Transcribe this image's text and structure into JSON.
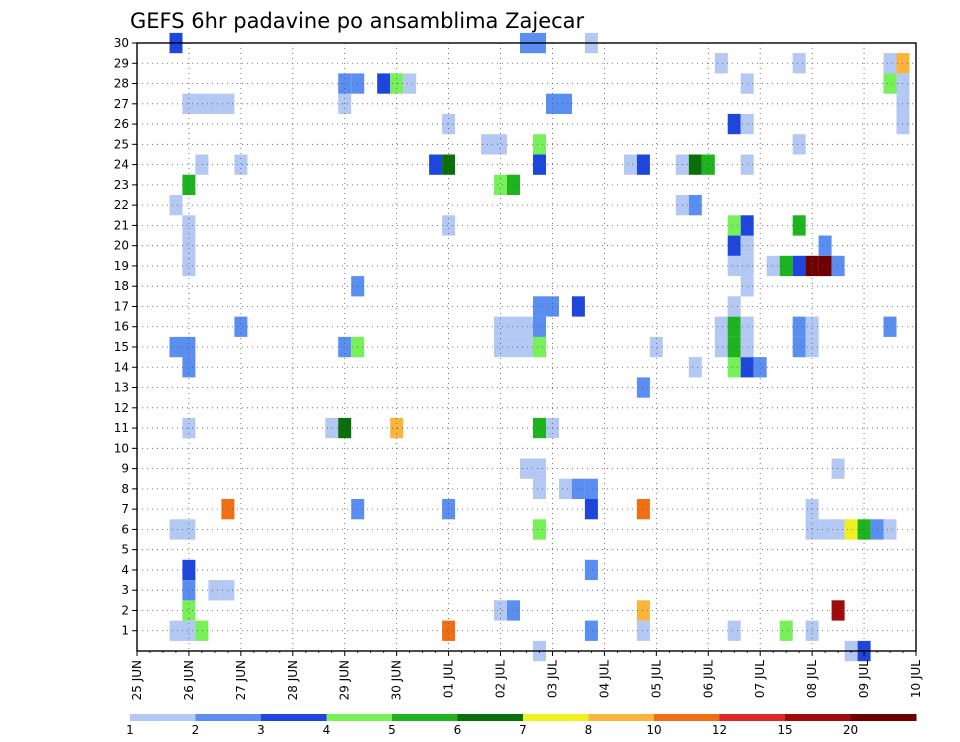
{
  "chart_data": {
    "type": "heatmap",
    "title": "GEFS 6hr padavine po ansamblima Zajecar",
    "xlabel": "",
    "ylabel": "",
    "x_tick_labels": [
      "25 JUN",
      "26 JUN",
      "27 JUN",
      "28 JUN",
      "29 JUN",
      "30 JUN",
      "01 JUL",
      "02 JUL",
      "03 JUL",
      "04 JUL",
      "05 JUL",
      "06 JUL",
      "07 JUL",
      "08 JUL",
      "09 JUL",
      "10 JUL"
    ],
    "y_tick_labels": [
      "1",
      "2",
      "3",
      "4",
      "5",
      "6",
      "7",
      "8",
      "9",
      "10",
      "11",
      "12",
      "13",
      "14",
      "15",
      "16",
      "17",
      "18",
      "19",
      "20",
      "21",
      "22",
      "23",
      "24",
      "25",
      "26",
      "27",
      "28",
      "29",
      "30"
    ],
    "x_range_days": [
      0,
      15
    ],
    "y_range_members": [
      0,
      30
    ],
    "grid": true,
    "colorbar": {
      "levels": [
        "1",
        "2",
        "3",
        "4",
        "5",
        "6",
        "7",
        "8",
        "10",
        "12",
        "15",
        "20"
      ],
      "colors": [
        "#b4c8f4",
        "#5a8ef0",
        "#1e46dc",
        "#78f05a",
        "#1eb41e",
        "#0a6e0a",
        "#f0f01e",
        "#fab43c",
        "#f06e14",
        "#dc2828",
        "#a00a0a",
        "#6e0000"
      ]
    },
    "cells": [
      {
        "day": 0.75,
        "member": 30,
        "level": 2
      },
      {
        "day": 1.0,
        "member": 1,
        "level": 0
      },
      {
        "day": 1.0,
        "member": 2,
        "level": 3
      },
      {
        "day": 1.0,
        "member": 3,
        "level": 1
      },
      {
        "day": 1.0,
        "member": 4,
        "level": 2
      },
      {
        "day": 1.0,
        "member": 6,
        "level": 0
      },
      {
        "day": 1.0,
        "member": 11,
        "level": 0
      },
      {
        "day": 1.0,
        "member": 14,
        "level": 1
      },
      {
        "day": 1.0,
        "member": 15,
        "level": 1
      },
      {
        "day": 1.0,
        "member": 19,
        "level": 0
      },
      {
        "day": 1.0,
        "member": 20,
        "level": 0
      },
      {
        "day": 1.0,
        "member": 21,
        "level": 0
      },
      {
        "day": 1.0,
        "member": 23,
        "level": 4
      },
      {
        "day": 1.0,
        "member": 27,
        "level": 0
      },
      {
        "day": 0.75,
        "member": 1,
        "level": 0
      },
      {
        "day": 0.75,
        "member": 6,
        "level": 0
      },
      {
        "day": 0.75,
        "member": 15,
        "level": 1
      },
      {
        "day": 0.75,
        "member": 22,
        "level": 0
      },
      {
        "day": 1.25,
        "member": 1,
        "level": 3
      },
      {
        "day": 1.25,
        "member": 24,
        "level": 0
      },
      {
        "day": 1.25,
        "member": 27,
        "level": 0
      },
      {
        "day": 1.5,
        "member": 3,
        "level": 0
      },
      {
        "day": 1.75,
        "member": 3,
        "level": 0
      },
      {
        "day": 1.75,
        "member": 27,
        "level": 0
      },
      {
        "day": 1.5,
        "member": 27,
        "level": 0
      },
      {
        "day": 1.75,
        "member": 7,
        "level": 8
      },
      {
        "day": 2.0,
        "member": 16,
        "level": 1
      },
      {
        "day": 2.0,
        "member": 24,
        "level": 0
      },
      {
        "day": 3.75,
        "member": 11,
        "level": 0
      },
      {
        "day": 4.0,
        "member": 11,
        "level": 5
      },
      {
        "day": 4.0,
        "member": 15,
        "level": 1
      },
      {
        "day": 4.0,
        "member": 27,
        "level": 0
      },
      {
        "day": 4.0,
        "member": 28,
        "level": 1
      },
      {
        "day": 4.25,
        "member": 28,
        "level": 1
      },
      {
        "day": 4.25,
        "member": 7,
        "level": 1
      },
      {
        "day": 4.25,
        "member": 15,
        "level": 3
      },
      {
        "day": 4.25,
        "member": 18,
        "level": 1
      },
      {
        "day": 4.75,
        "member": 28,
        "level": 2
      },
      {
        "day": 5.0,
        "member": 28,
        "level": 3
      },
      {
        "day": 5.25,
        "member": 28,
        "level": 0
      },
      {
        "day": 5.0,
        "member": 11,
        "level": 7
      },
      {
        "day": 5.75,
        "member": 24,
        "level": 2
      },
      {
        "day": 6.0,
        "member": 24,
        "level": 5
      },
      {
        "day": 6.0,
        "member": 1,
        "level": 8
      },
      {
        "day": 6.0,
        "member": 7,
        "level": 1
      },
      {
        "day": 6.0,
        "member": 21,
        "level": 0
      },
      {
        "day": 6.0,
        "member": 26,
        "level": 0
      },
      {
        "day": 6.75,
        "member": 25,
        "level": 0
      },
      {
        "day": 7.0,
        "member": 25,
        "level": 0
      },
      {
        "day": 7.0,
        "member": 23,
        "level": 3
      },
      {
        "day": 7.25,
        "member": 23,
        "level": 4
      },
      {
        "day": 7.0,
        "member": 2,
        "level": 0
      },
      {
        "day": 7.25,
        "member": 2,
        "level": 1
      },
      {
        "day": 7.0,
        "member": 16,
        "level": 0
      },
      {
        "day": 7.25,
        "member": 16,
        "level": 0
      },
      {
        "day": 7.5,
        "member": 16,
        "level": 0
      },
      {
        "day": 7.0,
        "member": 15,
        "level": 0
      },
      {
        "day": 7.25,
        "member": 15,
        "level": 0
      },
      {
        "day": 7.5,
        "member": 15,
        "level": 0
      },
      {
        "day": 7.75,
        "member": 15,
        "level": 3
      },
      {
        "day": 7.75,
        "member": 16,
        "level": 1
      },
      {
        "day": 7.75,
        "member": 17,
        "level": 1
      },
      {
        "day": 8.0,
        "member": 17,
        "level": 1
      },
      {
        "day": 7.5,
        "member": 30,
        "level": 1
      },
      {
        "day": 7.75,
        "member": 30,
        "level": 1
      },
      {
        "day": 7.75,
        "member": 24,
        "level": 2
      },
      {
        "day": 7.75,
        "member": 25,
        "level": 3
      },
      {
        "day": 7.75,
        "member": 11,
        "level": 4
      },
      {
        "day": 7.75,
        "member": 6,
        "level": 3
      },
      {
        "day": 8.0,
        "member": 11,
        "level": 0
      },
      {
        "day": 7.5,
        "member": 9,
        "level": 0
      },
      {
        "day": 7.75,
        "member": 9,
        "level": 0
      },
      {
        "day": 7.75,
        "member": 8,
        "level": 0
      },
      {
        "day": 7.75,
        "member": 0,
        "level": 0
      },
      {
        "day": 8.0,
        "member": 27,
        "level": 1
      },
      {
        "day": 8.25,
        "member": 27,
        "level": 1
      },
      {
        "day": 8.5,
        "member": 17,
        "level": 2
      },
      {
        "day": 8.25,
        "member": 8,
        "level": 0
      },
      {
        "day": 8.5,
        "member": 8,
        "level": 1
      },
      {
        "day": 8.75,
        "member": 8,
        "level": 1
      },
      {
        "day": 8.75,
        "member": 7,
        "level": 2
      },
      {
        "day": 8.75,
        "member": 1,
        "level": 1
      },
      {
        "day": 8.75,
        "member": 4,
        "level": 1
      },
      {
        "day": 8.75,
        "member": 30,
        "level": 0
      },
      {
        "day": 9.5,
        "member": 24,
        "level": 0
      },
      {
        "day": 9.75,
        "member": 24,
        "level": 2
      },
      {
        "day": 9.75,
        "member": 1,
        "level": 0
      },
      {
        "day": 9.75,
        "member": 7,
        "level": 8
      },
      {
        "day": 9.75,
        "member": 2,
        "level": 7
      },
      {
        "day": 9.75,
        "member": 13,
        "level": 1
      },
      {
        "day": 10.0,
        "member": 15,
        "level": 0
      },
      {
        "day": 10.5,
        "member": 24,
        "level": 0
      },
      {
        "day": 10.75,
        "member": 24,
        "level": 5
      },
      {
        "day": 11.0,
        "member": 24,
        "level": 4
      },
      {
        "day": 10.5,
        "member": 22,
        "level": 0
      },
      {
        "day": 10.75,
        "member": 22,
        "level": 1
      },
      {
        "day": 10.75,
        "member": 14,
        "level": 0
      },
      {
        "day": 11.25,
        "member": 15,
        "level": 0
      },
      {
        "day": 11.25,
        "member": 16,
        "level": 0
      },
      {
        "day": 11.25,
        "member": 29,
        "level": 0
      },
      {
        "day": 11.5,
        "member": 14,
        "level": 3
      },
      {
        "day": 11.5,
        "member": 15,
        "level": 4
      },
      {
        "day": 11.5,
        "member": 16,
        "level": 4
      },
      {
        "day": 11.5,
        "member": 17,
        "level": 0
      },
      {
        "day": 11.5,
        "member": 19,
        "level": 0
      },
      {
        "day": 11.5,
        "member": 20,
        "level": 2
      },
      {
        "day": 11.5,
        "member": 21,
        "level": 3
      },
      {
        "day": 11.5,
        "member": 26,
        "level": 2
      },
      {
        "day": 11.5,
        "member": 1,
        "level": 0
      },
      {
        "day": 11.75,
        "member": 14,
        "level": 2
      },
      {
        "day": 11.75,
        "member": 15,
        "level": 0
      },
      {
        "day": 11.75,
        "member": 16,
        "level": 0
      },
      {
        "day": 11.75,
        "member": 18,
        "level": 0
      },
      {
        "day": 11.75,
        "member": 19,
        "level": 0
      },
      {
        "day": 11.75,
        "member": 20,
        "level": 0
      },
      {
        "day": 11.75,
        "member": 21,
        "level": 2
      },
      {
        "day": 11.75,
        "member": 24,
        "level": 0
      },
      {
        "day": 11.75,
        "member": 26,
        "level": 0
      },
      {
        "day": 11.75,
        "member": 28,
        "level": 0
      },
      {
        "day": 12.0,
        "member": 14,
        "level": 1
      },
      {
        "day": 12.25,
        "member": 19,
        "level": 0
      },
      {
        "day": 12.5,
        "member": 19,
        "level": 4
      },
      {
        "day": 12.75,
        "member": 19,
        "level": 2
      },
      {
        "day": 13.0,
        "member": 19,
        "level": 11
      },
      {
        "day": 13.25,
        "member": 19,
        "level": 11
      },
      {
        "day": 13.5,
        "member": 19,
        "level": 1
      },
      {
        "day": 13.25,
        "member": 20,
        "level": 1
      },
      {
        "day": 12.5,
        "member": 1,
        "level": 3
      },
      {
        "day": 12.75,
        "member": 21,
        "level": 4
      },
      {
        "day": 12.75,
        "member": 15,
        "level": 1
      },
      {
        "day": 12.75,
        "member": 16,
        "level": 1
      },
      {
        "day": 12.75,
        "member": 25,
        "level": 0
      },
      {
        "day": 12.75,
        "member": 29,
        "level": 0
      },
      {
        "day": 13.0,
        "member": 15,
        "level": 0
      },
      {
        "day": 13.0,
        "member": 16,
        "level": 0
      },
      {
        "day": 13.0,
        "member": 1,
        "level": 0
      },
      {
        "day": 13.0,
        "member": 7,
        "level": 0
      },
      {
        "day": 13.0,
        "member": 6,
        "level": 0
      },
      {
        "day": 13.25,
        "member": 6,
        "level": 0
      },
      {
        "day": 13.5,
        "member": 6,
        "level": 0
      },
      {
        "day": 13.75,
        "member": 6,
        "level": 6
      },
      {
        "day": 14.0,
        "member": 6,
        "level": 4
      },
      {
        "day": 14.25,
        "member": 6,
        "level": 1
      },
      {
        "day": 14.5,
        "member": 6,
        "level": 0
      },
      {
        "day": 13.5,
        "member": 9,
        "level": 0
      },
      {
        "day": 13.5,
        "member": 2,
        "level": 10
      },
      {
        "day": 13.75,
        "member": 0,
        "level": 0
      },
      {
        "day": 14.0,
        "member": 0,
        "level": 2
      },
      {
        "day": 14.5,
        "member": 16,
        "level": 1
      },
      {
        "day": 14.5,
        "member": 29,
        "level": 0
      },
      {
        "day": 14.75,
        "member": 29,
        "level": 7
      },
      {
        "day": 14.5,
        "member": 28,
        "level": 3
      },
      {
        "day": 14.75,
        "member": 28,
        "level": 0
      },
      {
        "day": 14.75,
        "member": 27,
        "level": 0
      },
      {
        "day": 14.75,
        "member": 26,
        "level": 0
      }
    ]
  }
}
